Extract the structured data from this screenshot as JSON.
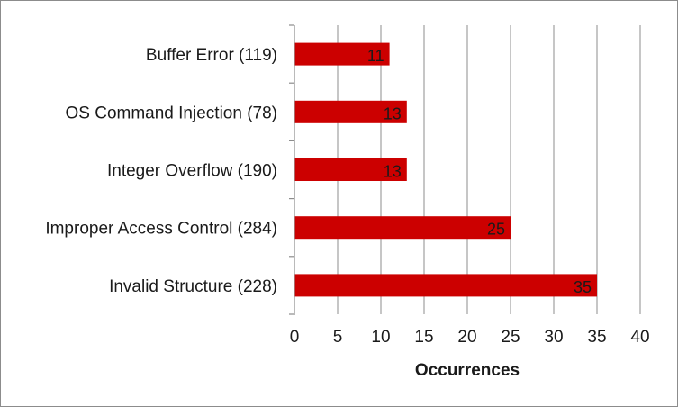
{
  "chart_data": {
    "type": "bar",
    "orientation": "horizontal",
    "categories": [
      "Buffer Error (119)",
      "OS Command Injection (78)",
      "Integer Overflow (190)",
      "Improper Access Control (284)",
      "Invalid Structure (228)"
    ],
    "values": [
      11,
      13,
      13,
      25,
      35
    ],
    "title": "",
    "xlabel": "Occurrences",
    "ylabel": "",
    "xlim": [
      0,
      40
    ],
    "xticks": [
      "0",
      "5",
      "10",
      "15",
      "20",
      "25",
      "30",
      "35",
      "40"
    ],
    "data_labels": [
      "11",
      "13",
      "13",
      "25",
      "35"
    ],
    "grid": "vertical",
    "legend": "none",
    "bar_color": "#cc0000",
    "grid_color": "#8c8c8c"
  }
}
